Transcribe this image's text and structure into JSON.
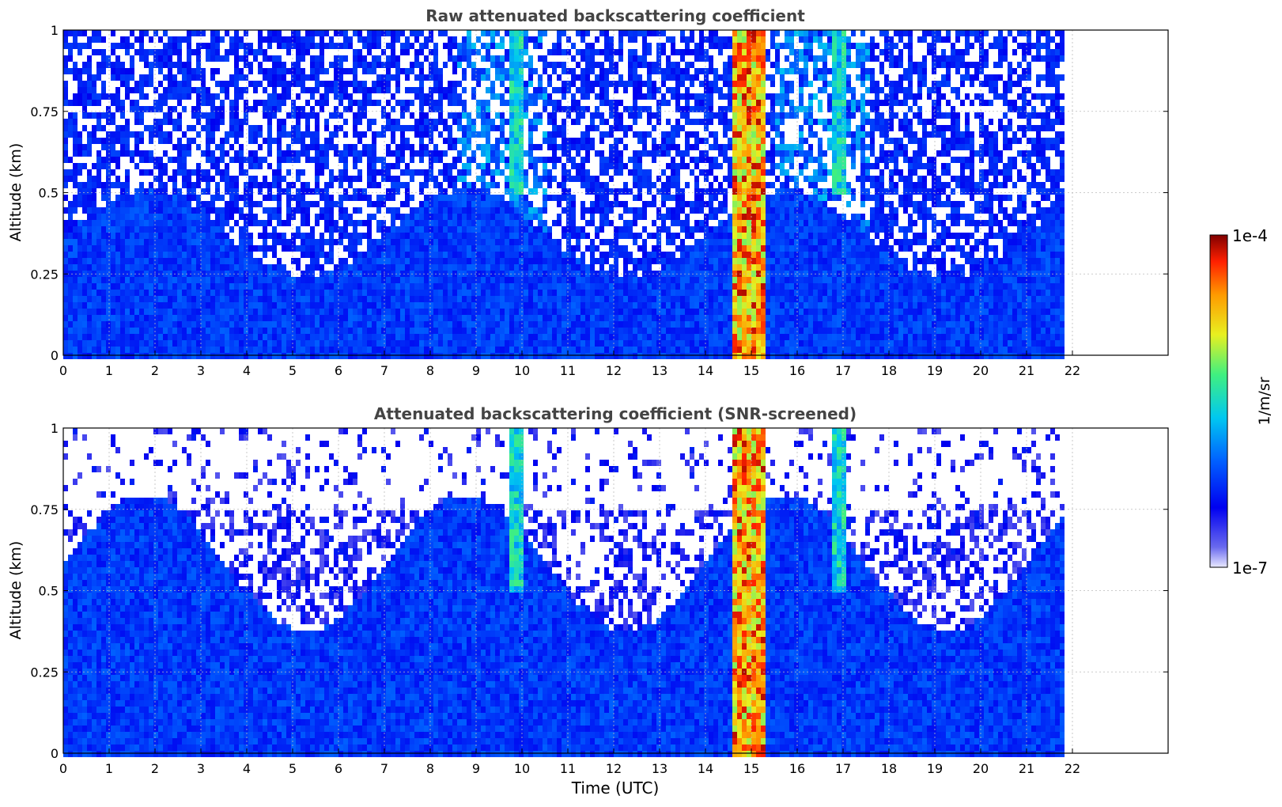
{
  "chart_data": [
    {
      "type": "heatmap",
      "title": "Raw attenuated backscattering coefficient",
      "xlabel": "",
      "ylabel": "Altitude (km)",
      "xlim": [
        0,
        24
      ],
      "ylim": [
        0,
        1
      ],
      "xticks": [
        "0",
        "1",
        "2",
        "3",
        "4",
        "5",
        "6",
        "7",
        "8",
        "9",
        "10",
        "11",
        "12",
        "13",
        "14",
        "15",
        "16",
        "17",
        "18",
        "19",
        "20",
        "21",
        "22"
      ],
      "yticks": [
        "0",
        "0.25",
        "0.5",
        "0.75",
        "1"
      ],
      "grid": true,
      "data_end_hour": 21.75,
      "features": [
        {
          "name": "thick cloud",
          "x": [
            14.55,
            15.3
          ],
          "level": "high"
        },
        {
          "name": "aerosol plume",
          "x": [
            9.65,
            9.95
          ],
          "level": "moderate"
        },
        {
          "name": "aerosol plume",
          "x": [
            16.7,
            17.05
          ],
          "level": "moderate"
        },
        {
          "name": "boundary layer",
          "x": [
            0,
            21.75
          ],
          "top_km": 0.45,
          "level": "low"
        }
      ]
    },
    {
      "type": "heatmap",
      "title": "Attenuated backscattering coefficient (SNR-screened)",
      "xlabel": "Time (UTC)",
      "ylabel": "Altitude (km)",
      "xlim": [
        0,
        24
      ],
      "ylim": [
        0,
        1
      ],
      "xticks": [
        "0",
        "1",
        "2",
        "3",
        "4",
        "5",
        "6",
        "7",
        "8",
        "9",
        "10",
        "11",
        "12",
        "13",
        "14",
        "15",
        "16",
        "17",
        "18",
        "19",
        "20",
        "21",
        "22"
      ],
      "yticks": [
        "0",
        "0.25",
        "0.5",
        "0.75",
        "1"
      ],
      "grid": true,
      "data_end_hour": 21.75,
      "features": [
        {
          "name": "thick cloud",
          "x": [
            14.55,
            15.3
          ],
          "level": "high"
        },
        {
          "name": "aerosol plume",
          "x": [
            9.65,
            9.95
          ],
          "level": "moderate"
        },
        {
          "name": "aerosol plume",
          "x": [
            16.7,
            17.05
          ],
          "level": "moderate"
        },
        {
          "name": "boundary layer",
          "x": [
            0,
            21.75
          ],
          "top_km": 0.7,
          "level": "low"
        }
      ]
    }
  ],
  "colorbar": {
    "label": "1/m/sr",
    "max_label": "1e-4",
    "min_label": "1e-7",
    "colormap": "jet"
  },
  "colors": {
    "deep_blue": "#0a1cf0",
    "mid_blue": "#1e5af5",
    "cyan": "#27d8e8",
    "yellow": "#f0e020",
    "orange": "#f57a10",
    "red": "#d41008"
  }
}
